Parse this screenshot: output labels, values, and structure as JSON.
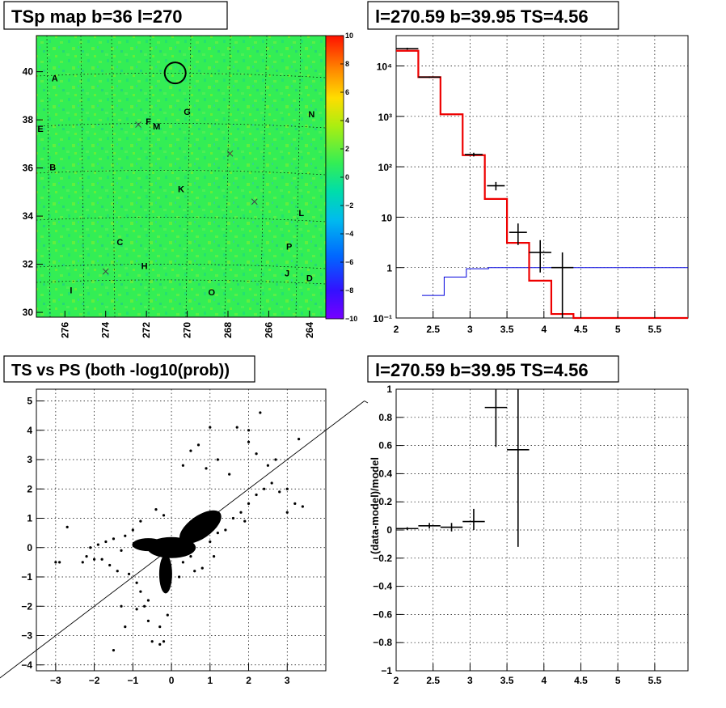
{
  "panels": {
    "map": {
      "title": "TSp map b=36 l=270"
    },
    "spectrum": {
      "title": "l=270.59 b=39.95 TS=4.56"
    },
    "scatter": {
      "title": "TS vs PS (both -log10(prob))"
    },
    "residual": {
      "title": "l=270.59 b=39.95 TS=4.56"
    }
  },
  "colors": {
    "map_background": "#33ee55",
    "model_line": "#ee0000",
    "background_line": "#0000dd",
    "data_points": "#000000"
  },
  "chart_data": [
    {
      "id": "map",
      "type": "heatmap",
      "title": "TSp map b=36 l=270",
      "x_ticks": [
        "276",
        "274",
        "272",
        "270",
        "268",
        "266",
        "264"
      ],
      "x_tick_values": [
        276,
        274,
        272,
        270,
        268,
        266,
        264
      ],
      "xlim": [
        277.4,
        263.2
      ],
      "y_ticks": [
        "30",
        "32",
        "34",
        "36",
        "38",
        "40"
      ],
      "y_tick_values": [
        30,
        32,
        34,
        36,
        38,
        40
      ],
      "ylim": [
        29.8,
        41.5
      ],
      "colorbar": {
        "ticks": [
          "10",
          "8",
          "6",
          "4",
          "2",
          "0",
          "−2",
          "−4",
          "−6",
          "−8",
          "−10"
        ],
        "tick_values": [
          10,
          8,
          6,
          4,
          2,
          0,
          -2,
          -4,
          -6,
          -8,
          -10
        ],
        "range": [
          -10,
          10
        ]
      },
      "marker_labels": [
        {
          "text": "A",
          "l": 276.5,
          "b": 39.6
        },
        {
          "text": "E",
          "l": 277.2,
          "b": 37.5
        },
        {
          "text": "B",
          "l": 276.6,
          "b": 35.9
        },
        {
          "text": "F",
          "l": 271.9,
          "b": 37.8
        },
        {
          "text": "M",
          "l": 271.5,
          "b": 37.6
        },
        {
          "text": "G",
          "l": 270.0,
          "b": 38.2
        },
        {
          "text": "N",
          "l": 263.9,
          "b": 38.1
        },
        {
          "text": "K",
          "l": 270.3,
          "b": 35.0
        },
        {
          "text": "L",
          "l": 264.4,
          "b": 34.0
        },
        {
          "text": "C",
          "l": 273.3,
          "b": 32.8
        },
        {
          "text": "H",
          "l": 272.1,
          "b": 31.8
        },
        {
          "text": "P",
          "l": 265.0,
          "b": 32.6
        },
        {
          "text": "J",
          "l": 265.1,
          "b": 31.5
        },
        {
          "text": "D",
          "l": 264.0,
          "b": 31.3
        },
        {
          "text": "I",
          "l": 275.7,
          "b": 30.8
        },
        {
          "text": "O",
          "l": 268.8,
          "b": 30.7
        }
      ],
      "x_markers": [
        {
          "l": 272.4,
          "b": 37.8
        },
        {
          "l": 267.9,
          "b": 36.6
        },
        {
          "l": 266.7,
          "b": 34.6
        },
        {
          "l": 274.0,
          "b": 31.7
        }
      ],
      "circle": {
        "l": 270.59,
        "b": 39.95
      }
    },
    {
      "id": "spectrum",
      "type": "line",
      "title": "l=270.59 b=39.95 TS=4.56",
      "x_log": false,
      "y_log": true,
      "xlim": [
        2,
        5.95
      ],
      "ylim": [
        0.1,
        40000
      ],
      "x_ticks": [
        "2",
        "2.5",
        "3",
        "3.5",
        "4",
        "4.5",
        "5",
        "5.5"
      ],
      "x_tick_values": [
        2,
        2.5,
        3,
        3.5,
        4,
        4.5,
        5,
        5.5
      ],
      "y_ticks": [
        "10⁻¹",
        "1",
        "10",
        "10²",
        "10³",
        "10⁴"
      ],
      "y_tick_values": [
        0.1,
        1,
        10,
        100,
        1000,
        10000
      ],
      "grid": true,
      "series": [
        {
          "role": "model",
          "bin_edges": [
            2,
            2.3,
            2.6,
            2.9,
            3.2,
            3.5,
            3.8,
            4.1,
            4.4,
            5.95
          ],
          "values": [
            20000,
            6000,
            1100,
            170,
            23,
            3.1,
            0.55,
            0.12,
            0.1
          ]
        },
        {
          "role": "background",
          "bin_edges": [
            2.35,
            2.65,
            2.95,
            3.25,
            5.95
          ],
          "values": [
            0.28,
            0.65,
            0.95,
            1.0
          ]
        },
        {
          "role": "data",
          "points": [
            {
              "x": 2.15,
              "y": 22000,
              "xerr": 0.15,
              "ylo": 21000,
              "yhi": 23000
            },
            {
              "x": 2.45,
              "y": 6000,
              "xerr": 0.15,
              "ylo": 5800,
              "yhi": 6200
            },
            {
              "x": 3.05,
              "y": 175,
              "xerr": 0.12,
              "ylo": 160,
              "yhi": 190
            },
            {
              "x": 3.35,
              "y": 42,
              "xerr": 0.12,
              "ylo": 34,
              "yhi": 50
            },
            {
              "x": 3.65,
              "y": 5,
              "xerr": 0.12,
              "ylo": 2.8,
              "yhi": 7.5
            },
            {
              "x": 3.95,
              "y": 2,
              "xerr": 0.15,
              "ylo": 0.8,
              "yhi": 3.5
            },
            {
              "x": 4.25,
              "y": 1,
              "xerr": 0.15,
              "ylo": 0.1,
              "yhi": 2.0
            }
          ]
        }
      ]
    },
    {
      "id": "scatter",
      "type": "scatter",
      "title": "TS vs PS (both -log10(prob))",
      "xlim": [
        -3.5,
        4.0
      ],
      "ylim": [
        -4.2,
        5.4
      ],
      "x_ticks": [
        "−3",
        "−2",
        "−1",
        "0",
        "1",
        "2",
        "3"
      ],
      "x_tick_values": [
        -3,
        -2,
        -1,
        0,
        1,
        2,
        3
      ],
      "y_ticks": [
        "−4",
        "−3",
        "−2",
        "−1",
        "0",
        "1",
        "2",
        "3",
        "4",
        "5"
      ],
      "y_tick_values": [
        -4,
        -3,
        -2,
        -1,
        0,
        1,
        2,
        3,
        4,
        5
      ],
      "grid": true,
      "diagonal": {
        "x1": -4.5,
        "y1": -4.5,
        "x2": 5.0,
        "y2": 5.0
      },
      "points": [
        [
          -2.9,
          -0.5
        ],
        [
          -3.0,
          -0.5
        ],
        [
          -2.7,
          0.7
        ],
        [
          -2.3,
          -0.5
        ],
        [
          -2.2,
          -0.3
        ],
        [
          -2.0,
          -0.4
        ],
        [
          -1.8,
          -0.4
        ],
        [
          -1.7,
          0.2
        ],
        [
          -1.6,
          -0.6
        ],
        [
          -1.5,
          0.3
        ],
        [
          -1.4,
          -0.8
        ],
        [
          -1.3,
          -0.1
        ],
        [
          -1.2,
          0.4
        ],
        [
          -1.1,
          -0.9
        ],
        [
          -1.0,
          0.6
        ],
        [
          -0.9,
          -1.2
        ],
        [
          -0.8,
          0.9
        ],
        [
          -0.8,
          -1.5
        ],
        [
          -0.7,
          -2.0
        ],
        [
          -0.6,
          -2.5
        ],
        [
          -0.5,
          -3.2
        ],
        [
          -1.5,
          -3.5
        ],
        [
          -0.3,
          -3.3
        ],
        [
          -0.2,
          -3.2
        ],
        [
          -0.3,
          -2.7
        ],
        [
          -0.1,
          -2.3
        ],
        [
          -1.2,
          -2.7
        ],
        [
          -1.3,
          -2.0
        ],
        [
          -0.9,
          -2.1
        ],
        [
          -0.6,
          -1.8
        ],
        [
          0.3,
          -0.5
        ],
        [
          0.5,
          -0.3
        ],
        [
          0.8,
          -0.7
        ],
        [
          1.0,
          0.2
        ],
        [
          1.2,
          0.5
        ],
        [
          1.4,
          0.6
        ],
        [
          1.6,
          1.0
        ],
        [
          1.8,
          1.2
        ],
        [
          2.0,
          1.5
        ],
        [
          2.2,
          1.8
        ],
        [
          2.4,
          2.0
        ],
        [
          2.6,
          2.2
        ],
        [
          2.8,
          1.9
        ],
        [
          3.0,
          2.0
        ],
        [
          3.2,
          1.5
        ],
        [
          3.4,
          1.4
        ],
        [
          2.5,
          2.8
        ],
        [
          2.2,
          3.2
        ],
        [
          2.0,
          3.6
        ],
        [
          1.7,
          4.1
        ],
        [
          2.0,
          4.0
        ],
        [
          2.3,
          4.6
        ],
        [
          1.0,
          4.1
        ],
        [
          0.7,
          3.5
        ],
        [
          0.5,
          3.3
        ],
        [
          0.3,
          2.8
        ],
        [
          3.3,
          3.7
        ],
        [
          2.7,
          3.0
        ],
        [
          1.2,
          3.0
        ],
        [
          1.5,
          2.5
        ],
        [
          0.9,
          2.7
        ],
        [
          3.0,
          1.2
        ],
        [
          1.9,
          0.9
        ],
        [
          1.1,
          -0.3
        ],
        [
          0.6,
          -0.8
        ],
        [
          0.2,
          -1.0
        ],
        [
          -0.4,
          1.3
        ],
        [
          -0.2,
          1.1
        ],
        [
          -1.9,
          0.1
        ],
        [
          -2.1,
          0.0
        ]
      ]
    },
    {
      "id": "residual",
      "type": "scatter",
      "title": "l=270.59 b=39.95 TS=4.56",
      "ylabel": "(data-model)/model",
      "xlim": [
        2,
        5.95
      ],
      "ylim": [
        -1,
        1
      ],
      "x_ticks": [
        "2",
        "2.5",
        "3",
        "3.5",
        "4",
        "4.5",
        "5",
        "5.5"
      ],
      "x_tick_values": [
        2,
        2.5,
        3,
        3.5,
        4,
        4.5,
        5,
        5.5
      ],
      "y_ticks": [
        "−1",
        "−0.8",
        "−0.6",
        "−0.4",
        "−0.2",
        "0",
        "0.2",
        "0.4",
        "0.6",
        "0.8",
        "1"
      ],
      "y_tick_values": [
        -1,
        -0.8,
        -0.6,
        -0.4,
        -0.2,
        0,
        0.2,
        0.4,
        0.6,
        0.8,
        1
      ],
      "grid": true,
      "points": [
        {
          "x": 2.15,
          "y": 0.01,
          "xerr": 0.15,
          "ylo": 0.0,
          "yhi": 0.02
        },
        {
          "x": 2.45,
          "y": 0.03,
          "xerr": 0.15,
          "ylo": 0.01,
          "yhi": 0.05
        },
        {
          "x": 2.75,
          "y": 0.02,
          "xerr": 0.15,
          "ylo": -0.01,
          "yhi": 0.05
        },
        {
          "x": 3.05,
          "y": 0.06,
          "xerr": 0.15,
          "ylo": 0.0,
          "yhi": 0.15
        },
        {
          "x": 3.35,
          "y": 0.87,
          "xerr": 0.15,
          "ylo": 0.59,
          "yhi": 1.0
        },
        {
          "x": 3.65,
          "y": 0.57,
          "xerr": 0.15,
          "ylo": -0.12,
          "yhi": 1.0
        }
      ]
    }
  ]
}
